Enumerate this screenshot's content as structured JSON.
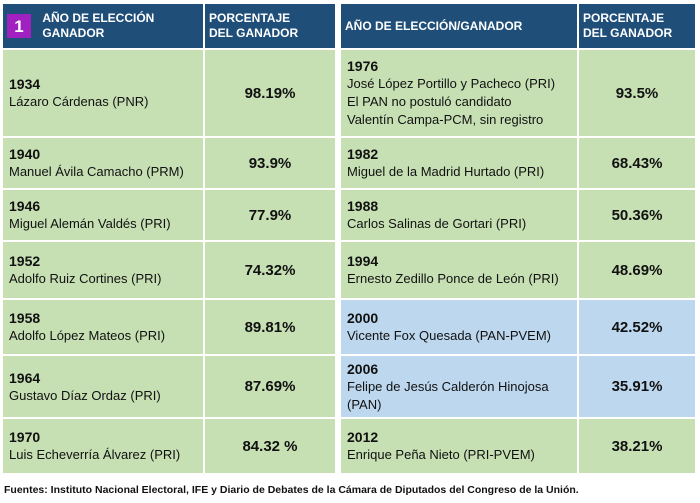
{
  "header": {
    "badge": "1",
    "left_col1": [
      "AÑO DE ELECCIÓN",
      "GANADOR"
    ],
    "col2": [
      "PORCENTAJE",
      "DEL GANADOR"
    ],
    "right_col1": "AÑO DE ELECCIÓN/GANADOR"
  },
  "left_rows": [
    {
      "year": "1934",
      "lines": [
        "Lázaro Cárdenas (PNR)"
      ],
      "pct": "98.19%"
    },
    {
      "year": "1940",
      "lines": [
        "Manuel Ávila Camacho (PRM)"
      ],
      "pct": "93.9%"
    },
    {
      "year": "1946",
      "lines": [
        "Miguel Alemán Valdés (PRI)"
      ],
      "pct": "77.9%"
    },
    {
      "year": "1952",
      "lines": [
        "Adolfo Ruiz Cortines (PRI)"
      ],
      "pct": "74.32%"
    },
    {
      "year": "1958",
      "lines": [
        "Adolfo López Mateos (PRI)"
      ],
      "pct": "89.81%"
    },
    {
      "year": "1964",
      "lines": [
        "Gustavo Díaz Ordaz (PRI)"
      ],
      "pct": "87.69%"
    },
    {
      "year": "1970",
      "lines": [
        "Luis Echeverría Álvarez (PRI)"
      ],
      "pct": "84.32 %"
    }
  ],
  "right_rows": [
    {
      "year": "1976",
      "lines": [
        "José López Portillo y Pacheco (PRI)",
        "El PAN no postuló candidato",
        "Valentín Campa-PCM, sin registro"
      ],
      "pct": "93.5%",
      "color": "#c6e0b4"
    },
    {
      "year": "1982",
      "lines": [
        "Miguel de la Madrid Hurtado (PRI)"
      ],
      "pct": "68.43%",
      "color": "#c6e0b4"
    },
    {
      "year": "1988",
      "lines": [
        "Carlos Salinas de Gortari (PRI)"
      ],
      "pct": "50.36%",
      "color": "#c6e0b4"
    },
    {
      "year": "1994",
      "lines": [
        "Ernesto Zedillo Ponce de León (PRI)"
      ],
      "pct": "48.69%",
      "color": "#c6e0b4"
    },
    {
      "year": "2000",
      "lines": [
        "Vicente Fox Quesada (PAN-PVEM)"
      ],
      "pct": "42.52%",
      "color": "#bdd7ee"
    },
    {
      "year": "2006",
      "lines": [
        "Felipe de Jesús Calderón Hinojosa",
        "(PAN)"
      ],
      "pct": "35.91%",
      "color": "#bdd7ee"
    },
    {
      "year": "2012",
      "lines": [
        "Enrique Peña Nieto (PRI-PVEM)"
      ],
      "pct": "38.21%",
      "color": "#c6e0b4"
    }
  ],
  "footer": "Fuentes: Instituto Nacional Electoral, IFE  y Diario de Debates de la Cámara de Diputados del Congreso de la Unión."
}
